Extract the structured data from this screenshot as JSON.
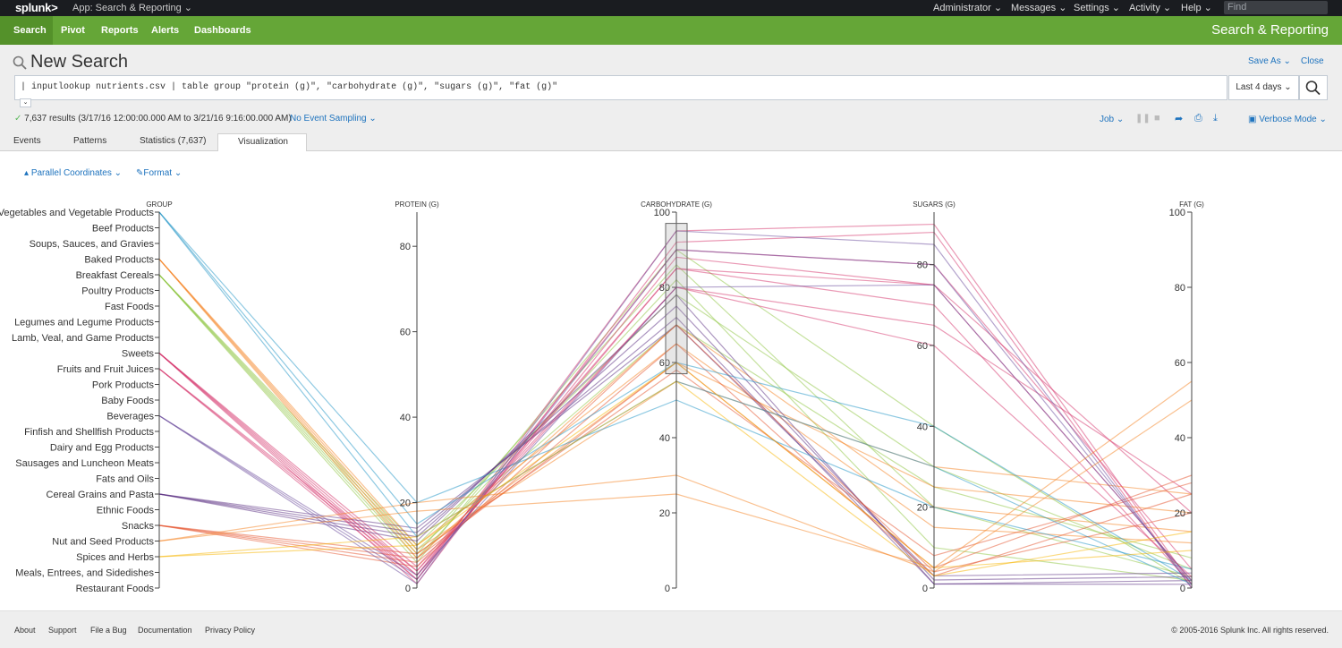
{
  "topbar": {
    "logo": "splunk>",
    "app_label": "App: Search & Reporting",
    "menus": [
      "Administrator",
      "Messages",
      "Settings",
      "Activity",
      "Help"
    ],
    "find_placeholder": "Find"
  },
  "appbar": {
    "nav": [
      "Search",
      "Pivot",
      "Reports",
      "Alerts",
      "Dashboards"
    ],
    "active": "Search",
    "app_title": "Search & Reporting"
  },
  "search": {
    "title": "New Search",
    "save_as": "Save As",
    "close": "Close",
    "query": "| inputlookup nutrients.csv | table group \"protein (g)\", \"carbohydrate (g)\", \"sugars (g)\", \"fat (g)\"",
    "time_range": "Last 4 days",
    "results": "7,637 results (3/17/16 12:00:00.000 AM to 3/21/16 9:16:00.000 AM)",
    "sampling": "No Event Sampling",
    "job": "Job",
    "mode": "Verbose Mode"
  },
  "tabs": [
    "Events",
    "Patterns",
    "Statistics (7,637)",
    "Visualization"
  ],
  "active_tab": "Visualization",
  "viz": {
    "type_label": "Parallel Coordinates",
    "format_label": "Format"
  },
  "chart_data": {
    "type": "parallel-coordinates",
    "dimensions": [
      {
        "name": "GROUP",
        "kind": "categorical"
      },
      {
        "name": "PROTEIN (G)",
        "ticks": [
          0,
          20,
          40,
          60,
          80
        ],
        "domain": [
          0,
          88
        ]
      },
      {
        "name": "CARBOHYDRATE (G)",
        "ticks": [
          0,
          20,
          40,
          60,
          80,
          100
        ],
        "domain": [
          0,
          100
        ]
      },
      {
        "name": "SUGARS (G)",
        "ticks": [
          0,
          20,
          40,
          60,
          80
        ],
        "domain": [
          0,
          93
        ]
      },
      {
        "name": "FAT (G)",
        "ticks": [
          0,
          20,
          40,
          60,
          80,
          100
        ],
        "domain": [
          0,
          100
        ]
      }
    ],
    "categories": [
      "Vegetables and Vegetable Products",
      "Beef Products",
      "Soups, Sauces, and Gravies",
      "Baked Products",
      "Breakfast Cereals",
      "Poultry Products",
      "Fast Foods",
      "Legumes and Legume Products",
      "Lamb, Veal, and Game Products",
      "Sweets",
      "Fruits and Fruit Juices",
      "Pork Products",
      "Baby Foods",
      "Beverages",
      "Finfish and Shellfish Products",
      "Dairy and Egg Products",
      "Sausages and Luncheon Meats",
      "Fats and Oils",
      "Cereal Grains and Pasta",
      "Ethnic Foods",
      "Snacks",
      "Nut and Seed Products",
      "Spices and Herbs",
      "Meals, Entrees, and Sidedishes",
      "Restaurant Foods"
    ],
    "brush": {
      "dimension": "CARBOHYDRATE (G)",
      "range": [
        57,
        97
      ]
    },
    "series": [
      {
        "group": "Breakfast Cereals",
        "color": "#8dc63f",
        "lines": [
          [
            8,
            86,
            20,
            3
          ],
          [
            10,
            78,
            30,
            5
          ],
          [
            7,
            82,
            10,
            2
          ],
          [
            9,
            70,
            25,
            8
          ],
          [
            6,
            90,
            40,
            1
          ]
        ]
      },
      {
        "group": "Sweets",
        "color": "#d6336c",
        "lines": [
          [
            2,
            95,
            90,
            1
          ],
          [
            3,
            90,
            80,
            5
          ],
          [
            4,
            85,
            75,
            20
          ],
          [
            1,
            92,
            88,
            0
          ],
          [
            5,
            80,
            65,
            25
          ]
        ]
      },
      {
        "group": "Baked Products",
        "color": "#f58220",
        "lines": [
          [
            8,
            60,
            25,
            20
          ],
          [
            7,
            70,
            20,
            15
          ],
          [
            9,
            55,
            30,
            25
          ],
          [
            10,
            65,
            15,
            12
          ]
        ]
      },
      {
        "group": "Cereal Grains and Pasta",
        "color": "#5a2d82",
        "lines": [
          [
            12,
            75,
            2,
            3
          ],
          [
            13,
            72,
            1,
            2
          ],
          [
            14,
            70,
            3,
            4
          ],
          [
            11,
            78,
            1,
            1
          ]
        ]
      },
      {
        "group": "Snacks",
        "color": "#e5532d",
        "lines": [
          [
            7,
            60,
            5,
            30
          ],
          [
            6,
            65,
            3,
            25
          ],
          [
            8,
            58,
            8,
            28
          ],
          [
            5,
            70,
            4,
            20
          ]
        ]
      },
      {
        "group": "Vegetables and Vegetable Products",
        "color": "#1e93c6",
        "lines": [
          [
            15,
            60,
            40,
            2
          ],
          [
            12,
            55,
            30,
            1
          ],
          [
            20,
            50,
            20,
            5
          ]
        ]
      },
      {
        "group": "Fruits and Fruit Juices",
        "color": "#d6336c",
        "lines": [
          [
            3,
            85,
            70,
            1
          ],
          [
            2,
            88,
            75,
            2
          ],
          [
            4,
            80,
            60,
            3
          ]
        ]
      },
      {
        "group": "Beverages",
        "color": "#6a4a9c",
        "lines": [
          [
            1,
            95,
            85,
            0
          ],
          [
            2,
            90,
            80,
            1
          ],
          [
            3,
            80,
            75,
            2
          ]
        ]
      },
      {
        "group": "Spices and Herbs",
        "color": "#f7b500",
        "lines": [
          [
            10,
            60,
            5,
            10
          ],
          [
            12,
            55,
            3,
            15
          ]
        ]
      },
      {
        "group": "Nut and Seed Products",
        "color": "#f58220",
        "lines": [
          [
            20,
            30,
            4,
            50
          ],
          [
            18,
            25,
            5,
            55
          ]
        ]
      }
    ]
  },
  "footer": {
    "links": [
      "About",
      "Support",
      "File a Bug",
      "Documentation",
      "Privacy Policy"
    ],
    "copyright": "© 2005-2016 Splunk Inc. All rights reserved."
  }
}
